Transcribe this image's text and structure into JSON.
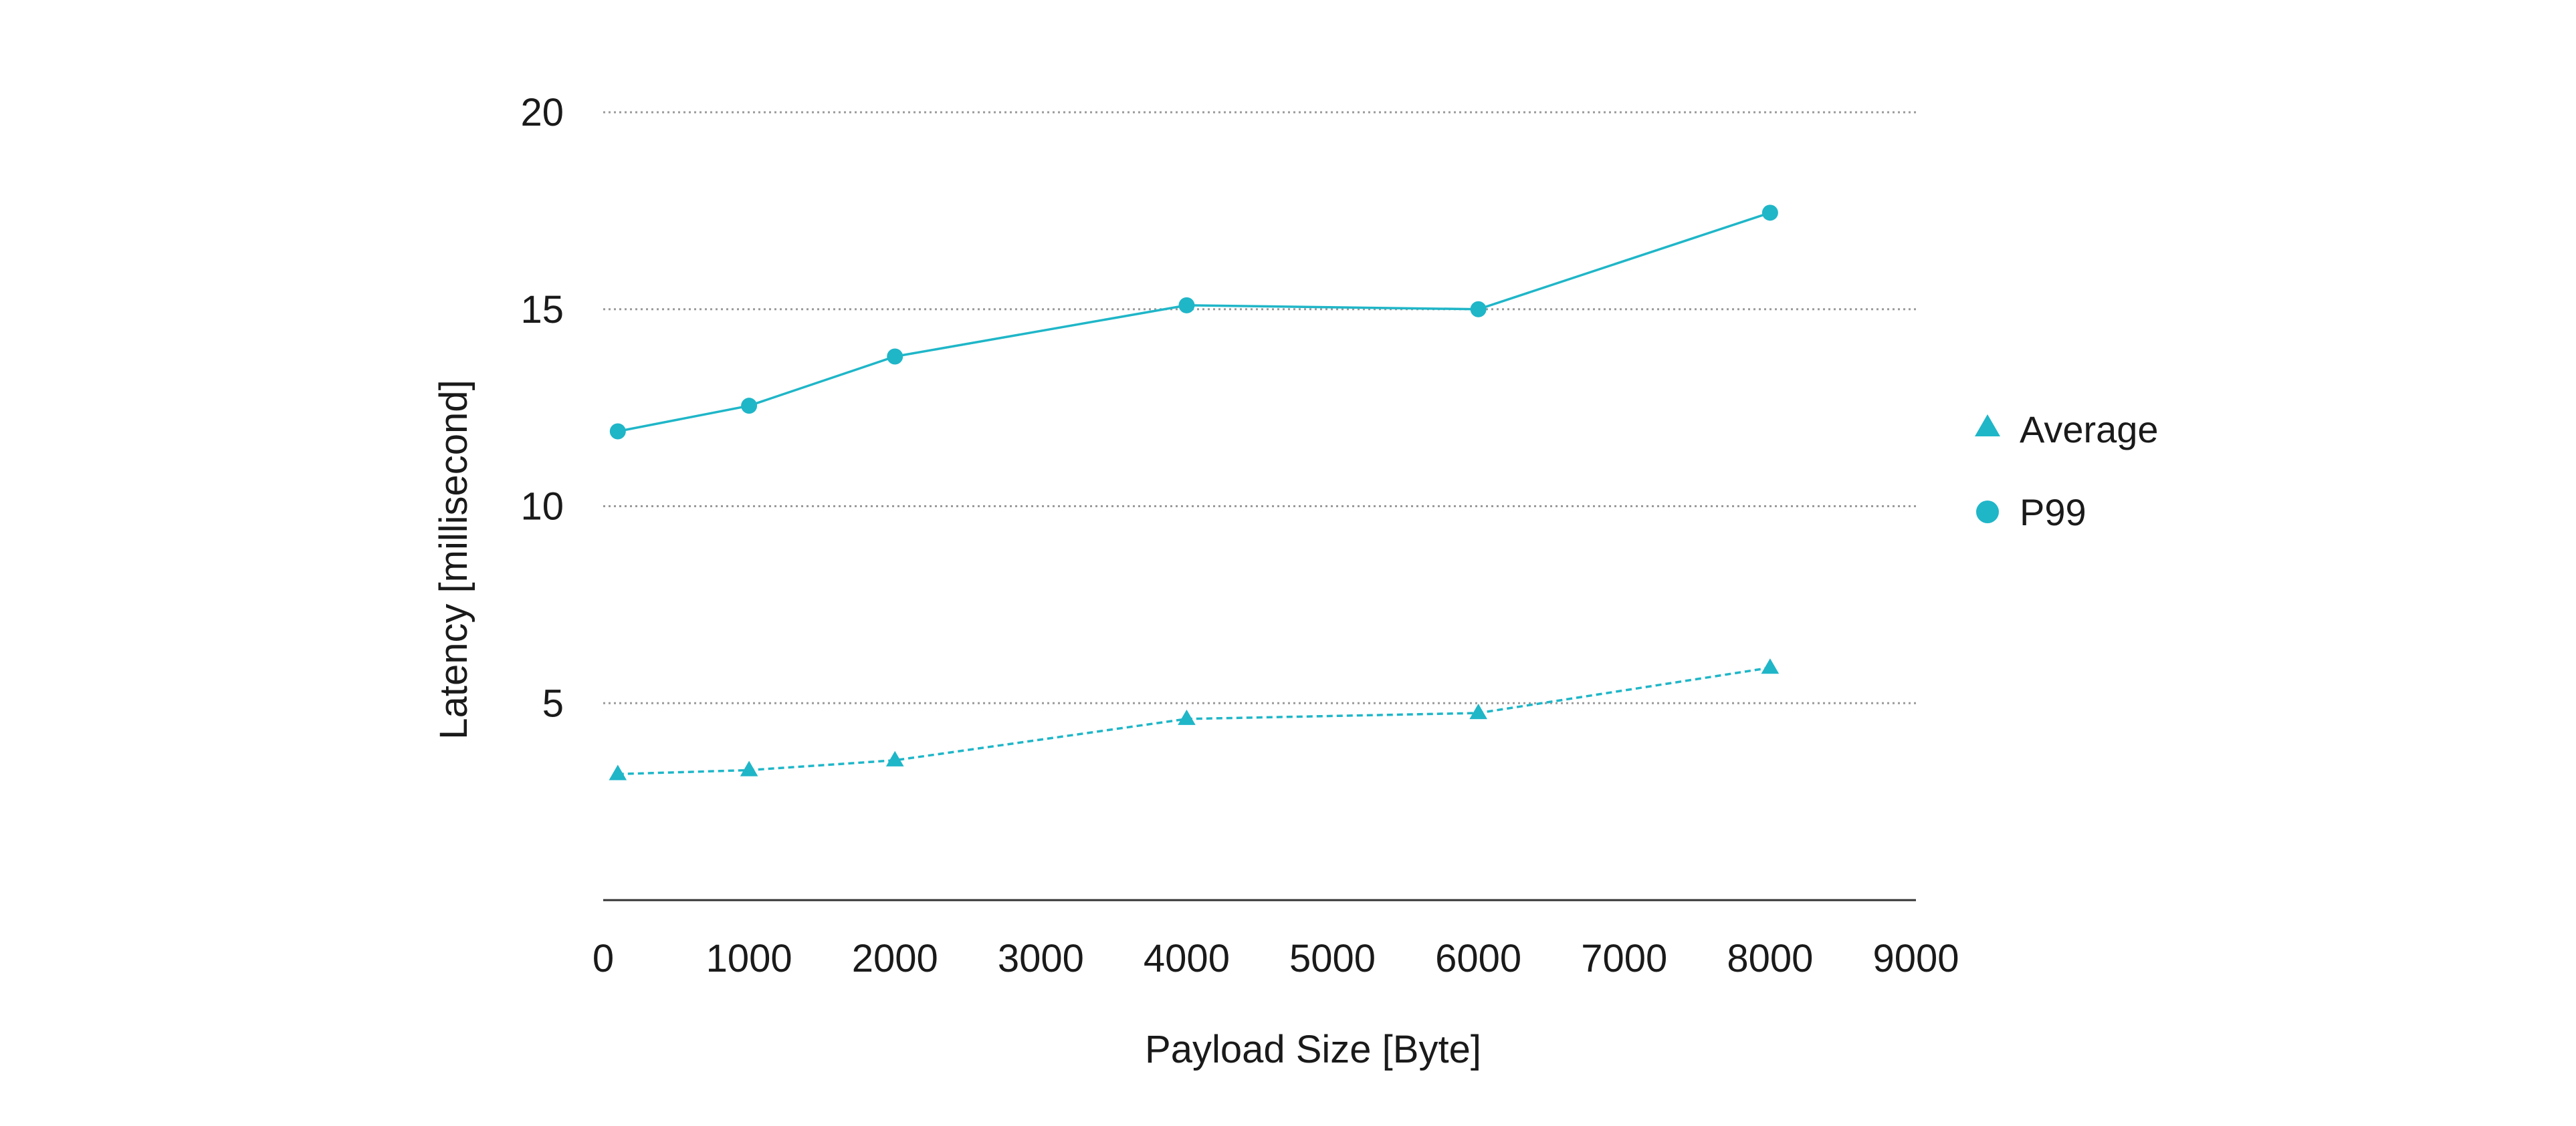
{
  "colors": {
    "series": "#1fb6c8",
    "grid": "#9a9a9a",
    "axis": "#333333",
    "text": "#1a1a1a"
  },
  "chart_data": {
    "type": "line",
    "title": "",
    "xlabel": "Payload Size [Byte]",
    "ylabel": "Latency [millisecond]",
    "xlim": [
      0,
      9000
    ],
    "ylim": [
      0,
      20
    ],
    "xticks": [
      0,
      1000,
      2000,
      3000,
      4000,
      5000,
      6000,
      7000,
      8000,
      9000
    ],
    "yticks": [
      5,
      10,
      15,
      20
    ],
    "grid": "horizontal dotted",
    "legend_position": "right",
    "series": [
      {
        "name": "Average",
        "marker": "triangle",
        "line_style": "dashed",
        "x": [
          100,
          1000,
          2000,
          4000,
          6000,
          8000
        ],
        "y": [
          3.2,
          3.3,
          3.55,
          4.6,
          4.75,
          5.9
        ]
      },
      {
        "name": "P99",
        "marker": "circle",
        "line_style": "solid",
        "x": [
          100,
          1000,
          2000,
          4000,
          6000,
          8000
        ],
        "y": [
          11.9,
          12.55,
          13.8,
          15.1,
          15.0,
          17.45
        ]
      }
    ]
  }
}
